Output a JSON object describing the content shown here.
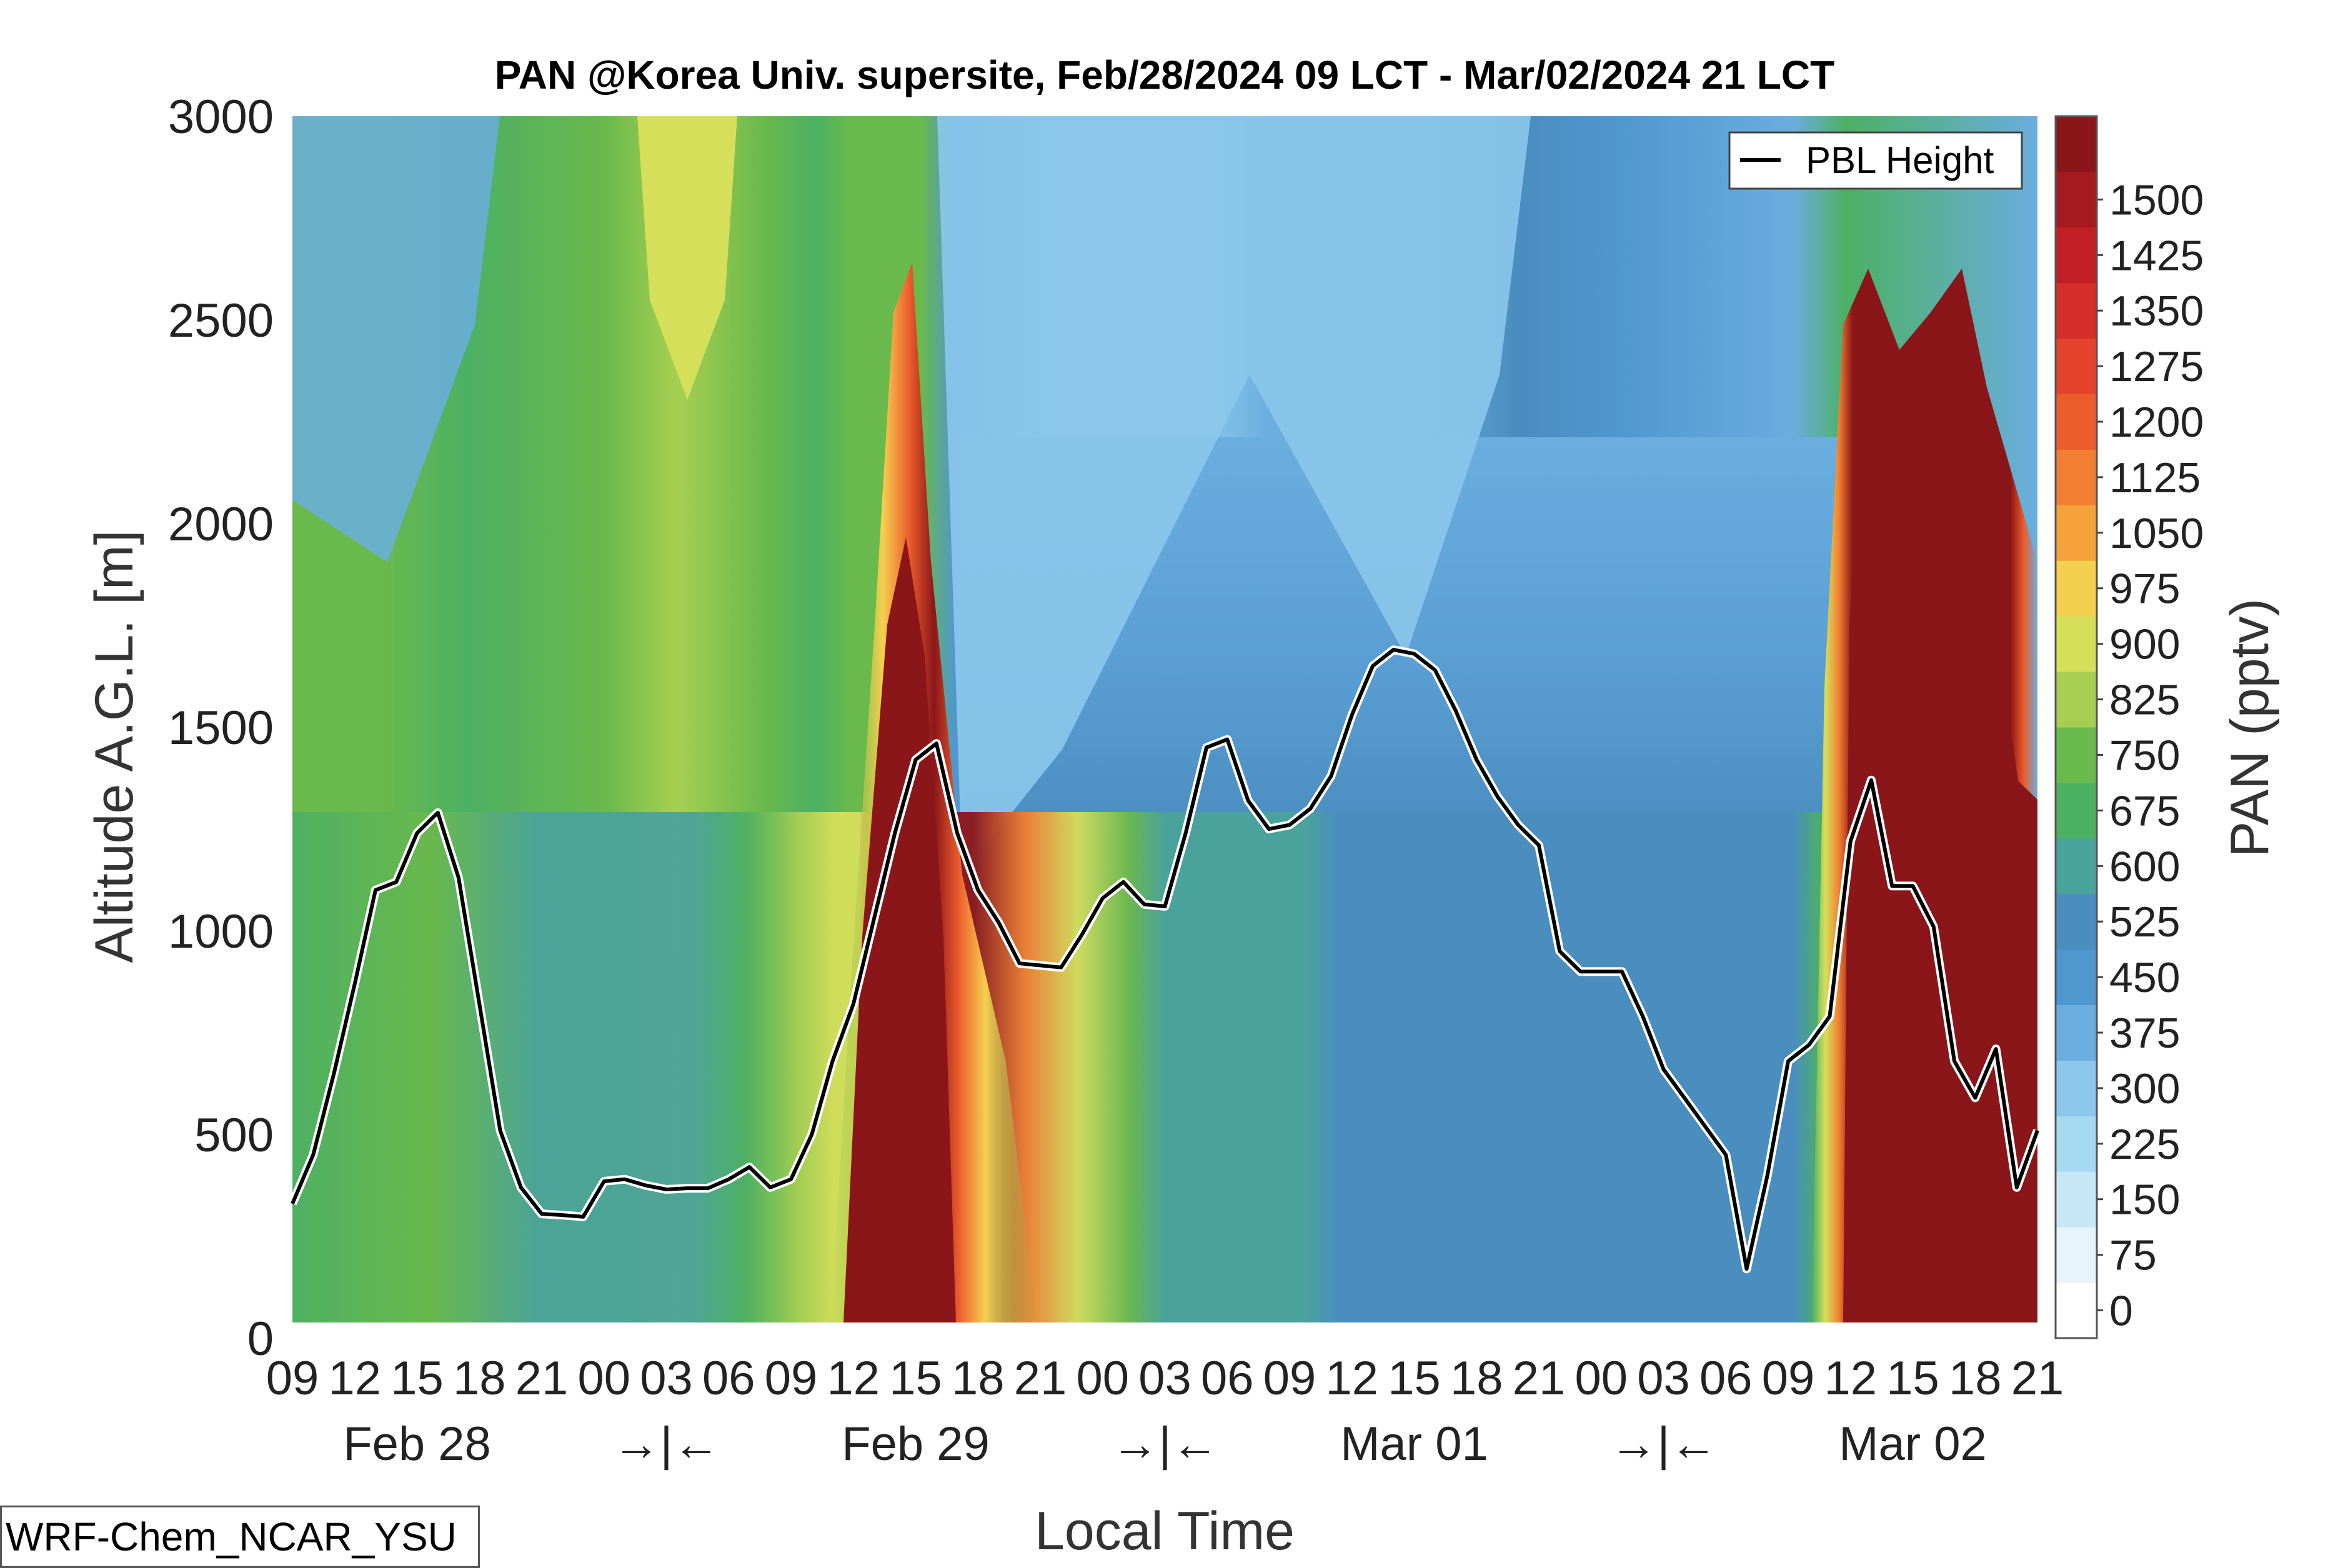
{
  "chart_data": {
    "type": "heatmap",
    "title": "PAN @Korea Univ. supersite, Feb/28/2024 09 LCT - Mar/02/2024 21 LCT",
    "xlabel": "Local Time",
    "ylabel": "Altitude A.G.L. [m]",
    "ylim": [
      0,
      3000
    ],
    "yticks": [
      "0",
      "500",
      "1000",
      "1500",
      "2000",
      "2500",
      "3000"
    ],
    "x_hours": [
      "09",
      "12",
      "15",
      "18",
      "21",
      "00",
      "03",
      "06",
      "09",
      "12",
      "15",
      "18",
      "21",
      "00",
      "03",
      "06",
      "09",
      "12",
      "15",
      "18",
      "21",
      "00",
      "03",
      "06",
      "09",
      "12",
      "15",
      "18",
      "21"
    ],
    "x_days": [
      "Feb 28",
      "→|←",
      "Feb 29",
      "→|←",
      "Mar 01",
      "→|←",
      "Mar 02"
    ],
    "colorbar": {
      "label": "PAN (pptv)",
      "ticks": [
        "0",
        "75",
        "150",
        "225",
        "300",
        "375",
        "450",
        "525",
        "600",
        "675",
        "750",
        "825",
        "900",
        "975",
        "1050",
        "1125",
        "1200",
        "1275",
        "1350",
        "1425",
        "1500"
      ],
      "colors": [
        "#ffffff",
        "#e8f4fb",
        "#c7e6f7",
        "#a6d9f2",
        "#8cc6eb",
        "#6aaedf",
        "#4f97cf",
        "#4a8dbf",
        "#4aa39a",
        "#4cb063",
        "#6ab94c",
        "#a6cf52",
        "#d6df5a",
        "#f5d04f",
        "#f6a23c",
        "#f27f31",
        "#ec5d2c",
        "#e3432a",
        "#d52d29",
        "#c21f24",
        "#a51a1f",
        "#8b1619"
      ]
    },
    "legend": {
      "entries": [
        "PBL Height"
      ],
      "placement": "top-right"
    },
    "series": [
      {
        "name": "PBL Height",
        "x_hours_from_start": [
          0,
          1,
          2,
          3,
          4,
          5,
          6,
          7,
          8,
          9,
          10,
          11,
          12,
          13,
          14,
          15,
          16,
          17,
          18,
          19,
          20,
          21,
          22,
          23,
          24,
          25,
          26,
          27,
          28,
          29,
          30,
          31,
          32,
          33,
          34,
          35,
          36,
          37,
          38,
          39,
          40,
          41,
          42,
          43,
          44,
          45,
          46,
          47,
          48,
          49,
          50,
          51,
          52,
          53,
          54,
          55,
          56,
          57,
          58,
          59,
          60,
          61,
          62,
          63,
          64,
          65,
          66,
          67,
          68,
          69,
          70,
          71,
          72,
          73,
          74,
          75,
          76,
          77,
          78,
          79,
          80,
          81,
          82,
          83,
          84
        ],
        "values": [
          330,
          450,
          650,
          870,
          1100,
          1120,
          1240,
          1290,
          1130,
          820,
          510,
          370,
          305,
          302,
          298,
          385,
          390,
          375,
          365,
          368,
          368,
          390,
          420,
          370,
          390,
          500,
          680,
          820,
          1030,
          1240,
          1420,
          1460,
          1240,
          1100,
          1020,
          920,
          915,
          910,
          990,
          1080,
          1120,
          1065,
          1060,
          1240,
          1450,
          1470,
          1320,
          1250,
          1260,
          1300,
          1380,
          1530,
          1650,
          1690,
          1680,
          1640,
          1540,
          1420,
          1330,
          1260,
          1210,
          950,
          900,
          900,
          900,
          790,
          660,
          590,
          520,
          450,
          170,
          400,
          680,
          720,
          790,
          1220,
          1370,
          1110,
          1110,
          1010,
          680,
          590,
          710,
          370,
          510
        ]
      }
    ],
    "model_label": "WRF-Chem_NCAR_YSU"
  }
}
